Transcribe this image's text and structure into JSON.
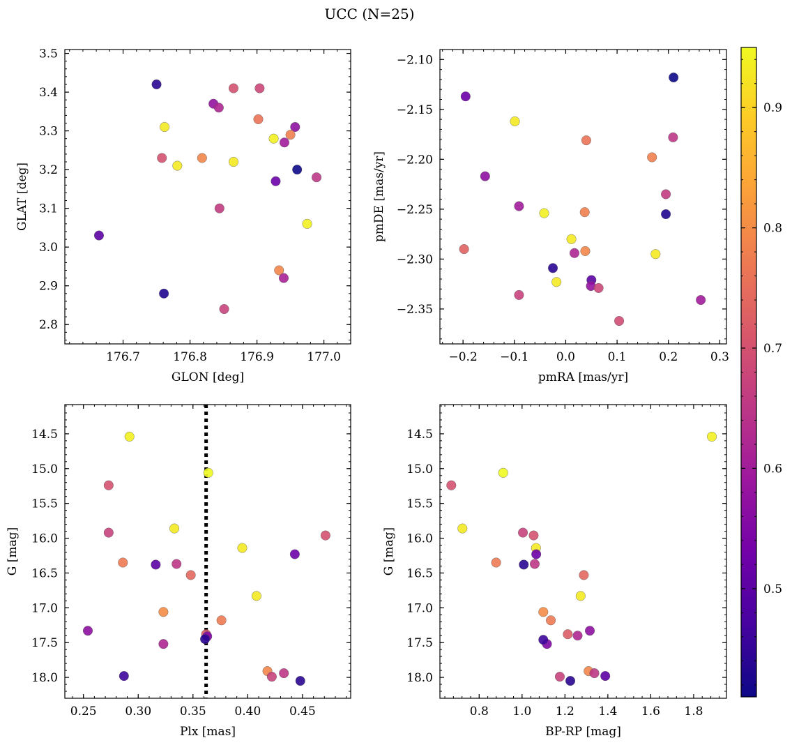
{
  "suptitle": "UCC (N=25)",
  "colorbar": {
    "ticks": [
      0.5,
      0.6,
      0.7,
      0.8,
      0.9
    ],
    "range": [
      0.41,
      0.95
    ],
    "colormap": [
      "#0d0887",
      "#46039f",
      "#7201a8",
      "#9c179e",
      "#bd3786",
      "#d8576b",
      "#ed7953",
      "#fb9f3a",
      "#fdca26",
      "#f0f921"
    ]
  },
  "chart_data": [
    {
      "id": "radec",
      "type": "scatter",
      "xlabel": "GLON [deg]",
      "ylabel": "GLAT [deg]",
      "xlim": [
        176.613,
        177.04
      ],
      "ylim": [
        2.75,
        3.51
      ],
      "invert_y": false,
      "xticks": [
        176.7,
        176.8,
        176.9,
        177.0
      ],
      "xtick_labels": [
        "176.7",
        "176.8",
        "176.9",
        "177.0"
      ],
      "yticks": [
        2.8,
        2.9,
        3.0,
        3.1,
        3.2,
        3.3,
        3.4,
        3.5
      ],
      "ytick_labels": [
        "2.8",
        "2.9",
        "3.0",
        "3.1",
        "3.2",
        "3.3",
        "3.4",
        "3.5"
      ],
      "x": [
        176.75,
        176.904,
        176.865,
        176.835,
        176.843,
        176.762,
        176.902,
        176.957,
        176.95,
        176.925,
        176.941,
        176.758,
        176.818,
        176.781,
        176.865,
        176.96,
        176.928,
        176.989,
        176.844,
        176.975,
        176.664,
        176.933,
        176.94,
        176.761,
        176.851
      ],
      "y": [
        3.42,
        3.41,
        3.41,
        3.37,
        3.36,
        3.31,
        3.33,
        3.31,
        3.29,
        3.28,
        3.27,
        3.23,
        3.23,
        3.21,
        3.22,
        3.2,
        3.17,
        3.18,
        3.1,
        3.06,
        3.03,
        2.94,
        2.92,
        2.88,
        2.84
      ],
      "c": [
        0.44,
        0.68,
        0.7,
        0.58,
        0.62,
        0.93,
        0.76,
        0.57,
        0.78,
        0.94,
        0.6,
        0.7,
        0.79,
        0.93,
        0.93,
        0.41,
        0.52,
        0.65,
        0.66,
        0.94,
        0.5,
        0.79,
        0.61,
        0.43,
        0.67
      ]
    },
    {
      "id": "pm",
      "type": "scatter",
      "xlabel": "pmRA [mas/yr]",
      "ylabel": "pmDE [mas/yr]",
      "xlim": [
        -0.245,
        0.313
      ],
      "ylim": [
        -2.385,
        -2.09
      ],
      "invert_y": false,
      "xticks": [
        -0.2,
        -0.1,
        0.0,
        0.1,
        0.2,
        0.3
      ],
      "xtick_labels": [
        "−0.2",
        "−0.1",
        "0.0",
        "0.1",
        "0.2",
        "0.3"
      ],
      "yticks": [
        -2.35,
        -2.3,
        -2.25,
        -2.2,
        -2.15,
        -2.1
      ],
      "ytick_labels": [
        "−2.35",
        "−2.30",
        "−2.25",
        "−2.20",
        "−2.15",
        "−2.10"
      ],
      "x": [
        0.21,
        -0.195,
        -0.099,
        0.04,
        0.209,
        0.168,
        -0.157,
        0.195,
        -0.091,
        -0.042,
        0.037,
        0.195,
        0.011,
        0.017,
        0.038,
        0.175,
        -0.025,
        -0.018,
        0.05,
        0.049,
        0.064,
        -0.091,
        0.263,
        0.104,
        -0.198
      ],
      "y": [
        -2.118,
        -2.137,
        -2.162,
        -2.181,
        -2.178,
        -2.198,
        -2.217,
        -2.235,
        -2.247,
        -2.254,
        -2.253,
        -2.255,
        -2.28,
        -2.294,
        -2.292,
        -2.295,
        -2.309,
        -2.323,
        -2.321,
        -2.327,
        -2.329,
        -2.336,
        -2.341,
        -2.362,
        -2.29
      ],
      "c": [
        0.41,
        0.52,
        0.93,
        0.76,
        0.65,
        0.78,
        0.57,
        0.66,
        0.6,
        0.94,
        0.78,
        0.43,
        0.93,
        0.62,
        0.79,
        0.93,
        0.44,
        0.93,
        0.5,
        0.58,
        0.68,
        0.67,
        0.6,
        0.69,
        0.73
      ]
    },
    {
      "id": "cmd_plx",
      "type": "scatter",
      "xlabel": "Plx [mas]",
      "ylabel": "G [mag]",
      "xlim": [
        0.233,
        0.494
      ],
      "ylim": [
        18.3,
        14.08
      ],
      "invert_y": true,
      "xticks": [
        0.25,
        0.3,
        0.35,
        0.4,
        0.45
      ],
      "xtick_labels": [
        "0.25",
        "0.30",
        "0.35",
        "0.40",
        "0.45"
      ],
      "yticks": [
        14.5,
        15.0,
        15.5,
        16.0,
        16.5,
        17.0,
        17.5,
        18.0
      ],
      "ytick_labels": [
        "14.5",
        "15.0",
        "15.5",
        "16.0",
        "16.5",
        "17.0",
        "17.5",
        "18.0"
      ],
      "vline": 0.362,
      "x": [
        0.292,
        0.364,
        0.273,
        0.333,
        0.273,
        0.471,
        0.395,
        0.443,
        0.286,
        0.335,
        0.348,
        0.316,
        0.408,
        0.323,
        0.376,
        0.254,
        0.362,
        0.363,
        0.323,
        0.361,
        0.287,
        0.418,
        0.433,
        0.422,
        0.448
      ],
      "y": [
        14.54,
        15.06,
        15.24,
        15.86,
        15.92,
        15.96,
        16.14,
        16.23,
        16.35,
        16.37,
        16.53,
        16.38,
        16.83,
        17.06,
        17.18,
        17.33,
        17.38,
        17.41,
        17.52,
        17.45,
        17.98,
        17.91,
        17.94,
        17.99,
        18.05
      ],
      "c": [
        0.94,
        0.95,
        0.7,
        0.93,
        0.67,
        0.7,
        0.93,
        0.52,
        0.77,
        0.65,
        0.74,
        0.5,
        0.93,
        0.8,
        0.77,
        0.57,
        0.72,
        0.55,
        0.62,
        0.44,
        0.46,
        0.79,
        0.65,
        0.67,
        0.44
      ]
    },
    {
      "id": "cmd_bprp",
      "type": "scatter",
      "xlabel": "BP-RP [mag]",
      "ylabel": "G [mag]",
      "xlim": [
        0.617,
        1.953
      ],
      "ylim": [
        18.3,
        14.08
      ],
      "invert_y": true,
      "xticks": [
        0.8,
        1.0,
        1.2,
        1.4,
        1.6,
        1.8
      ],
      "xtick_labels": [
        "0.8",
        "1.0",
        "1.2",
        "1.4",
        "1.6",
        "1.8"
      ],
      "yticks": [
        14.5,
        15.0,
        15.5,
        16.0,
        16.5,
        17.0,
        17.5,
        18.0
      ],
      "ytick_labels": [
        "14.5",
        "15.0",
        "15.5",
        "16.0",
        "16.5",
        "17.0",
        "17.5",
        "18.0"
      ],
      "x": [
        1.885,
        0.912,
        0.67,
        0.722,
        1.004,
        1.054,
        1.065,
        1.066,
        0.879,
        1.008,
        1.059,
        1.288,
        1.273,
        1.099,
        1.134,
        1.316,
        1.213,
        1.259,
        1.116,
        1.099,
        1.176,
        1.31,
        1.337,
        1.388,
        1.225
      ],
      "y": [
        14.54,
        15.06,
        15.24,
        15.86,
        15.92,
        15.96,
        16.14,
        16.23,
        16.35,
        16.38,
        16.37,
        16.53,
        16.83,
        17.06,
        17.18,
        17.33,
        17.38,
        17.4,
        17.52,
        17.46,
        17.99,
        17.91,
        17.94,
        17.98,
        18.05
      ],
      "c": [
        0.94,
        0.95,
        0.7,
        0.93,
        0.67,
        0.7,
        0.93,
        0.52,
        0.77,
        0.44,
        0.65,
        0.74,
        0.93,
        0.8,
        0.77,
        0.57,
        0.72,
        0.62,
        0.55,
        0.46,
        0.67,
        0.79,
        0.65,
        0.5,
        0.44
      ]
    }
  ]
}
